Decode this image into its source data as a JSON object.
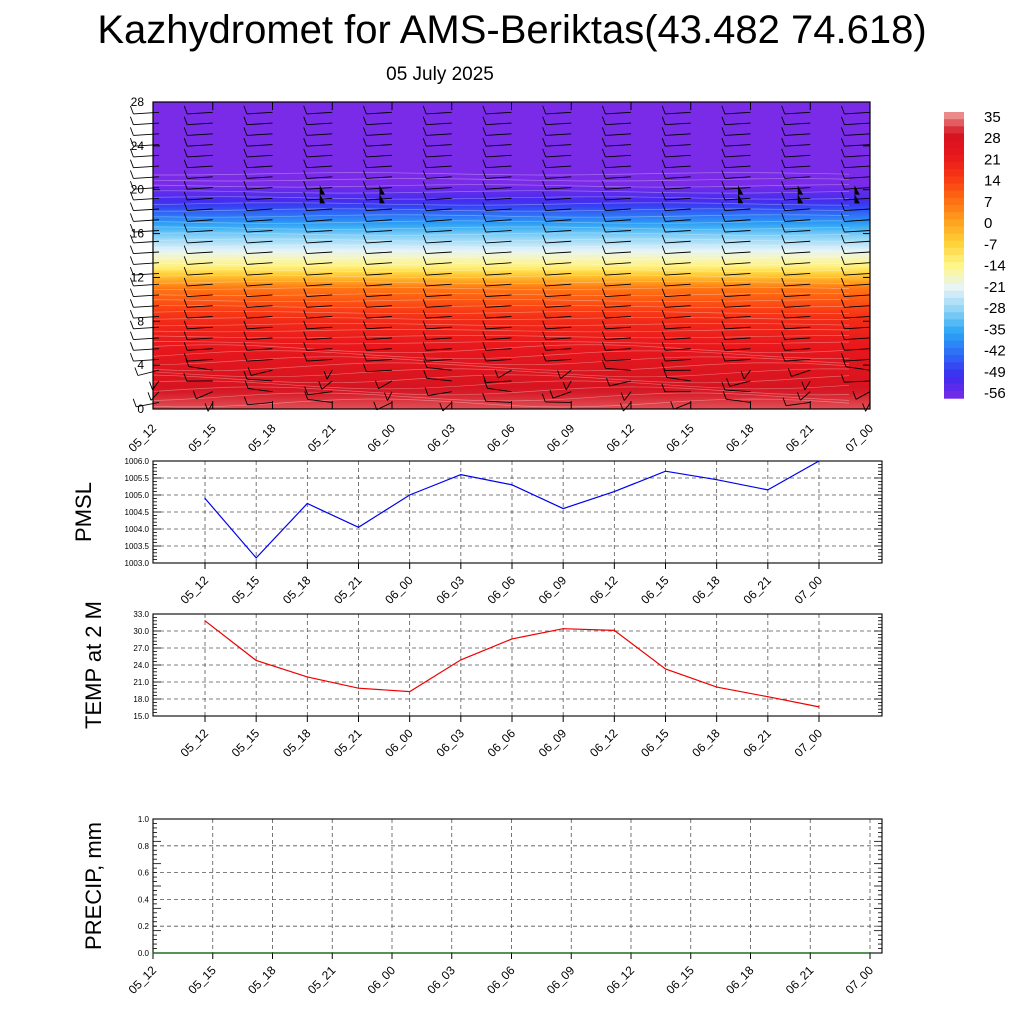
{
  "title": "Kazhydromet for AMS-Beriktas(43.482 74.618)",
  "subtitle": "05 July 2025",
  "chart_data": [
    {
      "type": "heatmap",
      "name": "vertical-cross-section",
      "ylim": [
        0,
        28
      ],
      "y_ticks": [
        "0",
        "4",
        "8",
        "12",
        "16",
        "20",
        "24",
        "28"
      ],
      "x_ticks": [
        "05_12",
        "05_15",
        "05_18",
        "05_21",
        "06_00",
        "06_03",
        "06_06",
        "06_09",
        "06_12",
        "06_15",
        "06_18",
        "06_21",
        "07_00"
      ],
      "grid": false,
      "wind_barbs": true,
      "colorbar": {
        "labels": [
          "35",
          "28",
          "21",
          "14",
          "7",
          "0",
          "-7",
          "-14",
          "-21",
          "-28",
          "-35",
          "-42",
          "-49",
          "-56"
        ],
        "range": [
          -56,
          35
        ],
        "colors": [
          "#7a2be8",
          "#3b2cf0",
          "#2e6cf6",
          "#2aa7f5",
          "#8fd4f6",
          "#e8f4f8",
          "#fff68a",
          "#ffd43a",
          "#ffa21f",
          "#ff6e12",
          "#f83815",
          "#e8171c",
          "#d51421",
          "#f0a0a0"
        ]
      },
      "temperature_profile": [
        {
          "height": 0,
          "value": 31
        },
        {
          "height": 4,
          "value": 24
        },
        {
          "height": 8,
          "value": 17
        },
        {
          "height": 11,
          "value": 6
        },
        {
          "height": 13,
          "value": -13
        },
        {
          "height": 16,
          "value": -30
        },
        {
          "height": 19,
          "value": -50
        },
        {
          "height": 21,
          "value": -58
        },
        {
          "height": 28,
          "value": -62
        }
      ]
    },
    {
      "type": "line",
      "name": "pmsl",
      "ylabel": "PMSL",
      "ylim": [
        1003.0,
        1006.0
      ],
      "y_ticks": [
        "1003.0",
        "1003.5",
        "1004.0",
        "1004.5",
        "1005.0",
        "1005.5",
        "1006.0"
      ],
      "categories": [
        "05_12",
        "05_15",
        "05_18",
        "05_21",
        "06_00",
        "06_03",
        "06_06",
        "06_09",
        "06_12",
        "06_15",
        "06_18",
        "06_21",
        "07_00"
      ],
      "values": [
        1004.9,
        1003.15,
        1004.75,
        1004.05,
        1005.0,
        1005.6,
        1005.3,
        1004.6,
        1005.1,
        1005.7,
        1005.45,
        1005.15,
        1006.0
      ],
      "color": "#0000ee",
      "grid": true
    },
    {
      "type": "line",
      "name": "temp-2m",
      "ylabel": "TEMP at 2 M",
      "ylim": [
        15.0,
        33.0
      ],
      "y_ticks": [
        "15.0",
        "18.0",
        "21.0",
        "24.0",
        "27.0",
        "30.0",
        "33.0"
      ],
      "categories": [
        "05_12",
        "05_15",
        "05_18",
        "05_21",
        "06_00",
        "06_03",
        "06_06",
        "06_09",
        "06_12",
        "06_15",
        "06_18",
        "06_21",
        "07_00"
      ],
      "values": [
        31.8,
        24.8,
        21.9,
        19.9,
        19.3,
        24.9,
        28.6,
        30.4,
        30.1,
        23.3,
        20.1,
        18.4,
        16.6
      ],
      "color": "#ee0000",
      "grid": true
    },
    {
      "type": "line",
      "name": "precip",
      "ylabel": "PRECIP, mm",
      "ylim": [
        0.0,
        1.0
      ],
      "y_ticks": [
        "0.0",
        "0.2",
        "0.4",
        "0.6",
        "0.8",
        "1.0"
      ],
      "x_ticks": [
        "05_12",
        "05_15",
        "05_18",
        "05_21",
        "06_00",
        "06_03",
        "06_06",
        "06_09",
        "06_12",
        "06_15",
        "06_18",
        "06_21",
        "07_00"
      ],
      "x": [
        "05_12",
        "05_15",
        "05_18",
        "05_21",
        "06_00",
        "06_03",
        "06_06",
        "06_09",
        "06_12",
        "06_15",
        "06_18",
        "06_21",
        "07_00"
      ],
      "values": [
        0,
        0,
        0,
        0,
        0,
        0,
        0,
        0,
        0,
        0,
        0,
        0,
        0
      ],
      "color": "#006400",
      "grid": true
    }
  ]
}
